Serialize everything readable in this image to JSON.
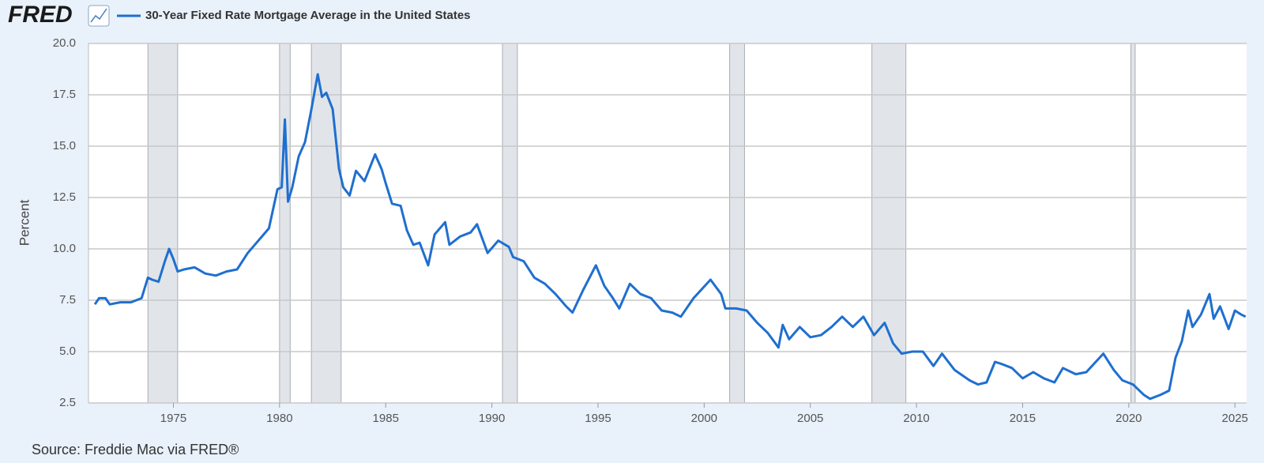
{
  "logo": "FRED",
  "chart_data": {
    "type": "line",
    "y_label": "Percent",
    "source": "Source: Freddie Mac via FRED®",
    "xlim": [
      1971.0,
      2025.55
    ],
    "xticks": [
      1975,
      1980,
      1985,
      1990,
      1995,
      2000,
      2005,
      2010,
      2015,
      2020,
      2025
    ],
    "ylim": [
      2.5,
      20
    ],
    "yticks": [
      {
        "value": 20,
        "label": "20.0"
      },
      17.5,
      {
        "value": 15,
        "label": "15.0"
      },
      12.5,
      {
        "value": 10,
        "label": "10.0"
      },
      7.5,
      {
        "value": 5,
        "label": "5.0"
      },
      2.5
    ],
    "grid": true,
    "recessions": [
      [
        1973.8,
        1975.2
      ],
      [
        1980.0,
        1980.5
      ],
      [
        1981.5,
        1982.9
      ],
      [
        1990.5,
        1991.2
      ],
      [
        2001.2,
        2001.9
      ],
      [
        2007.9,
        2009.5
      ],
      [
        2020.1,
        2020.3
      ]
    ],
    "x": [
      1971.3,
      1971.5,
      1971.8,
      1972.0,
      1972.5,
      1973.0,
      1973.5,
      1973.8,
      1974.0,
      1974.3,
      1974.6,
      1974.8,
      1975.0,
      1975.2,
      1975.5,
      1976.0,
      1976.5,
      1977.0,
      1977.5,
      1978.0,
      1978.5,
      1979.0,
      1979.5,
      1979.9,
      1980.1,
      1980.25,
      1980.4,
      1980.6,
      1980.9,
      1981.2,
      1981.5,
      1981.8,
      1982.0,
      1982.2,
      1982.5,
      1982.8,
      1983.0,
      1983.3,
      1983.6,
      1984.0,
      1984.5,
      1984.8,
      1985.0,
      1985.3,
      1985.7,
      1986.0,
      1986.3,
      1986.6,
      1987.0,
      1987.3,
      1987.8,
      1988.0,
      1988.5,
      1989.0,
      1989.3,
      1989.8,
      1990.3,
      1990.8,
      1991.0,
      1991.5,
      1992.0,
      1992.5,
      1993.0,
      1993.5,
      1993.8,
      1994.3,
      1994.9,
      1995.3,
      1995.7,
      1996.0,
      1996.5,
      1997.0,
      1997.5,
      1998.0,
      1998.5,
      1998.9,
      1999.5,
      2000.3,
      2000.8,
      2001.0,
      2001.5,
      2002.0,
      2002.5,
      2003.0,
      2003.5,
      2003.7,
      2004.0,
      2004.5,
      2005.0,
      2005.5,
      2006.0,
      2006.5,
      2007.0,
      2007.5,
      2008.0,
      2008.5,
      2008.9,
      2009.3,
      2009.8,
      2010.3,
      2010.8,
      2011.2,
      2011.8,
      2012.5,
      2012.9,
      2013.3,
      2013.7,
      2014.0,
      2014.5,
      2015.0,
      2015.5,
      2016.0,
      2016.5,
      2016.9,
      2017.5,
      2018.0,
      2018.8,
      2019.3,
      2019.7,
      2020.2,
      2020.7,
      2021.0,
      2021.5,
      2021.9,
      2022.2,
      2022.5,
      2022.8,
      2023.0,
      2023.4,
      2023.8,
      2024.0,
      2024.3,
      2024.7,
      2025.0,
      2025.3,
      2025.5
    ],
    "series": [
      {
        "name": "30-Year Fixed Rate Mortgage Average in the United States",
        "color": "#1f6fcf",
        "values": [
          7.3,
          7.6,
          7.6,
          7.3,
          7.4,
          7.4,
          7.6,
          8.6,
          8.5,
          8.4,
          9.4,
          10.0,
          9.5,
          8.9,
          9.0,
          9.1,
          8.8,
          8.7,
          8.9,
          9.0,
          9.8,
          10.4,
          11.0,
          12.9,
          13.0,
          16.3,
          12.3,
          13.0,
          14.5,
          15.2,
          16.8,
          18.5,
          17.4,
          17.6,
          16.8,
          13.9,
          13.0,
          12.6,
          13.8,
          13.3,
          14.6,
          13.9,
          13.2,
          12.2,
          12.1,
          10.9,
          10.2,
          10.3,
          9.2,
          10.7,
          11.3,
          10.2,
          10.6,
          10.8,
          11.2,
          9.8,
          10.4,
          10.1,
          9.6,
          9.4,
          8.6,
          8.3,
          7.8,
          7.2,
          6.9,
          8.0,
          9.2,
          8.2,
          7.6,
          7.1,
          8.3,
          7.8,
          7.6,
          7.0,
          6.9,
          6.7,
          7.6,
          8.5,
          7.8,
          7.1,
          7.1,
          7.0,
          6.4,
          5.9,
          5.2,
          6.3,
          5.6,
          6.2,
          5.7,
          5.8,
          6.2,
          6.7,
          6.2,
          6.7,
          5.8,
          6.4,
          5.4,
          4.9,
          5.0,
          5.0,
          4.3,
          4.9,
          4.1,
          3.6,
          3.4,
          3.5,
          4.5,
          4.4,
          4.2,
          3.7,
          4.0,
          3.7,
          3.5,
          4.2,
          3.9,
          4.0,
          4.9,
          4.1,
          3.6,
          3.4,
          2.9,
          2.7,
          2.9,
          3.1,
          4.7,
          5.5,
          7.0,
          6.2,
          6.8,
          7.8,
          6.6,
          7.2,
          6.1,
          7.0,
          6.8,
          6.7
        ]
      }
    ]
  }
}
